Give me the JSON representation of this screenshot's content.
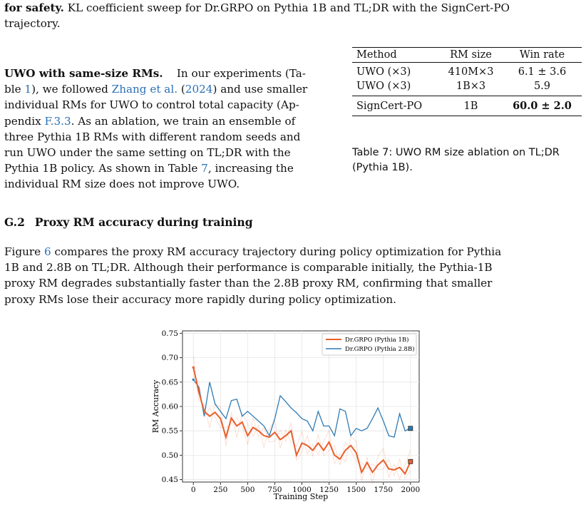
{
  "top": {
    "line1_bold": "for safety.",
    "line1_rest": " KL coefficient sweep for Dr.GRPO on Pythia 1B and TL;DR with the SignCert-PO",
    "line2": "trajectory."
  },
  "uwo": {
    "heading": "UWO with same-size RMs.",
    "lines": [
      [
        "In our experiments (Ta-"
      ],
      [
        "ble ",
        "1",
        "), we followed ",
        "Zhang et al.",
        " (",
        "2024",
        ") and use smaller"
      ],
      [
        "individual RMs for UWO to control total capacity (Ap-"
      ],
      [
        "pendix ",
        "F.3.3",
        ". As an ablation, we train an ensemble of"
      ],
      [
        "three Pythia 1B RMs with different random seeds and"
      ],
      [
        "run UWO under the same setting on TL;DR with the"
      ],
      [
        "Pythia 1B policy. As shown in Table ",
        "7",
        ", increasing the"
      ],
      [
        "individual RM size does not improve UWO."
      ]
    ]
  },
  "table": {
    "headers": [
      "Method",
      "RM size",
      "Win rate"
    ],
    "rows": [
      [
        "UWO (×3)",
        "410M×3",
        "6.1 ± 3.6"
      ],
      [
        "UWO (×3)",
        "1B×3",
        "5.9"
      ],
      [
        "SignCert-PO",
        "1B",
        "60.0 ± 2.0"
      ]
    ],
    "caption": "Table 7: UWO RM size ablation on TL;DR (Pythia 1B)."
  },
  "section": {
    "number": "G.2",
    "title": "Proxy RM accuracy during training"
  },
  "section_para": {
    "line1_a": "Figure ",
    "line1_ref": "6",
    "line1_b": " compares the proxy RM accuracy trajectory during policy optimization for Pythia",
    "line2": "1B and 2.8B on TL;DR. Although their performance is comparable initially, the Pythia-1B",
    "line3": "proxy RM degrades substantially faster than the 2.8B proxy RM, confirming that smaller",
    "line4": "proxy RMs lose their accuracy more rapidly during policy optimization."
  },
  "colors": {
    "orange": "#e8602c",
    "blue": "#2f7bb5",
    "link": "#2a6fb5"
  },
  "chart_data": {
    "type": "line",
    "xlabel": "Training Step",
    "ylabel": "RM Accuracy",
    "xlim": [
      -100,
      2080
    ],
    "ylim": [
      0.445,
      0.755
    ],
    "xticks": [
      0,
      250,
      500,
      750,
      1000,
      1250,
      1500,
      1750,
      2000
    ],
    "yticks": [
      0.45,
      0.5,
      0.55,
      0.6,
      0.65,
      0.7,
      0.75
    ],
    "ytick_labels": [
      "0.45",
      "0.50",
      "0.55",
      "0.60",
      "0.65",
      "0.70",
      "0.75"
    ],
    "grid": true,
    "legend": "top-right",
    "series": [
      {
        "name": "Dr.GRPO (Pythia 1B)",
        "color": "#e8602c",
        "x": [
          0,
          50,
          100,
          150,
          200,
          250,
          300,
          350,
          400,
          450,
          500,
          550,
          600,
          650,
          700,
          750,
          800,
          850,
          900,
          950,
          1000,
          1050,
          1100,
          1150,
          1200,
          1250,
          1300,
          1350,
          1400,
          1450,
          1500,
          1550,
          1600,
          1650,
          1700,
          1750,
          1800,
          1850,
          1900,
          1950,
          2000
        ],
        "y": [
          0.68,
          0.63,
          0.59,
          0.58,
          0.588,
          0.575,
          0.537,
          0.576,
          0.56,
          0.568,
          0.54,
          0.557,
          0.55,
          0.54,
          0.537,
          0.547,
          0.532,
          0.54,
          0.55,
          0.5,
          0.525,
          0.52,
          0.51,
          0.525,
          0.51,
          0.527,
          0.5,
          0.492,
          0.51,
          0.52,
          0.505,
          0.465,
          0.485,
          0.465,
          0.48,
          0.49,
          0.472,
          0.47,
          0.475,
          0.462,
          0.487
        ]
      },
      {
        "name": "Dr.GRPO (Pythia 2.8B)",
        "color": "#2f7bb5",
        "x": [
          0,
          50,
          100,
          150,
          200,
          250,
          300,
          350,
          400,
          450,
          500,
          550,
          600,
          650,
          700,
          750,
          800,
          850,
          900,
          950,
          1000,
          1050,
          1100,
          1150,
          1200,
          1250,
          1300,
          1350,
          1400,
          1450,
          1500,
          1550,
          1600,
          1650,
          1700,
          1750,
          1800,
          1850,
          1900,
          1950,
          2000
        ],
        "y": [
          0.655,
          0.64,
          0.58,
          0.65,
          0.605,
          0.59,
          0.575,
          0.612,
          0.615,
          0.58,
          0.59,
          0.58,
          0.57,
          0.56,
          0.54,
          0.575,
          0.622,
          0.61,
          0.597,
          0.587,
          0.575,
          0.57,
          0.55,
          0.59,
          0.56,
          0.56,
          0.54,
          0.595,
          0.59,
          0.54,
          0.555,
          0.55,
          0.555,
          0.575,
          0.597,
          0.57,
          0.54,
          0.537,
          0.585,
          0.55,
          0.555
        ]
      }
    ]
  }
}
